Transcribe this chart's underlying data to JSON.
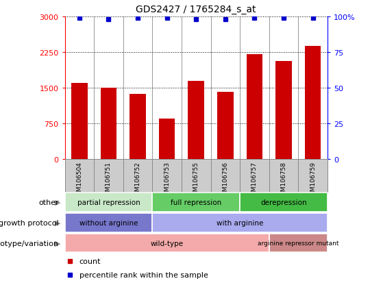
{
  "title": "GDS2427 / 1765284_s_at",
  "samples": [
    "GSM106504",
    "GSM106751",
    "GSM106752",
    "GSM106753",
    "GSM106755",
    "GSM106756",
    "GSM106757",
    "GSM106758",
    "GSM106759"
  ],
  "counts": [
    1600,
    1500,
    1380,
    850,
    1650,
    1420,
    2210,
    2070,
    2380
  ],
  "percentile_ranks": [
    99,
    98,
    99,
    99,
    98,
    98,
    99,
    99,
    99
  ],
  "ylim_left": [
    0,
    3000
  ],
  "ylim_right": [
    0,
    100
  ],
  "yticks_left": [
    0,
    750,
    1500,
    2250,
    3000
  ],
  "yticks_right": [
    0,
    25,
    50,
    75,
    100
  ],
  "bar_color": "#cc0000",
  "dot_color": "#0000cc",
  "annotation_groups": {
    "other": [
      {
        "label": "partial repression",
        "start": 0,
        "end": 3,
        "color": "#c8e8c8"
      },
      {
        "label": "full repression",
        "start": 3,
        "end": 6,
        "color": "#66cc66"
      },
      {
        "label": "derepression",
        "start": 6,
        "end": 9,
        "color": "#44bb44"
      }
    ],
    "growth_protocol": [
      {
        "label": "without arginine",
        "start": 0,
        "end": 3,
        "color": "#7777cc"
      },
      {
        "label": "with arginine",
        "start": 3,
        "end": 9,
        "color": "#aaaaee"
      }
    ],
    "genotype": [
      {
        "label": "wild-type",
        "start": 0,
        "end": 7,
        "color": "#f4aaaa"
      },
      {
        "label": "arginine repressor mutant",
        "start": 7,
        "end": 9,
        "color": "#cc8888"
      }
    ]
  },
  "row_labels": [
    "other",
    "growth protocol",
    "genotype/variation"
  ],
  "legend_items": [
    {
      "label": "count",
      "color": "#cc0000"
    },
    {
      "label": "percentile rank within the sample",
      "color": "#0000cc"
    }
  ],
  "xtick_box_color": "#cccccc",
  "xtick_box_border": "#888888"
}
